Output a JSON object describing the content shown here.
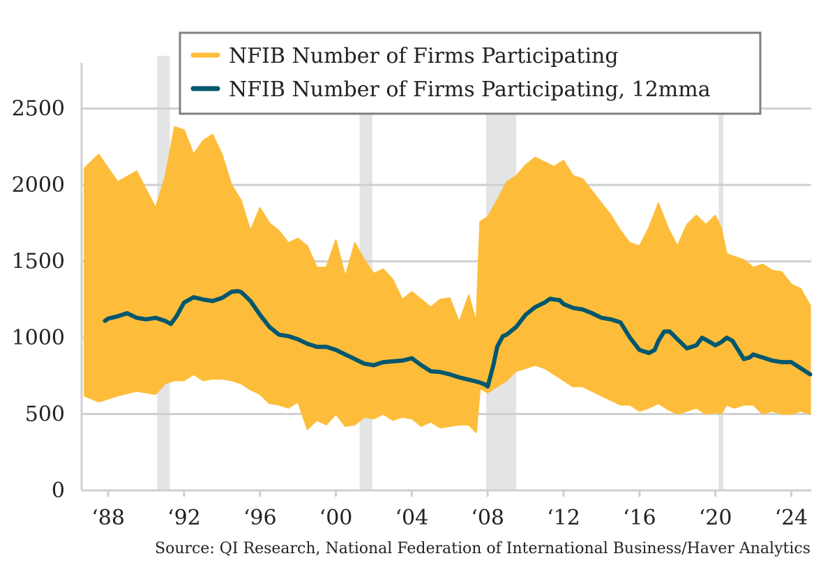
{
  "chart_data": {
    "type": "line",
    "ylim": [
      0,
      2800
    ],
    "xlim": [
      1986.6,
      2025.05
    ],
    "yticks": [
      0,
      500,
      1000,
      1500,
      2000,
      2500
    ],
    "ytick_labels": [
      "0",
      "500",
      "1000",
      "1500",
      "2000",
      "2500"
    ],
    "xticks": [
      1988,
      1992,
      1996,
      2000,
      2004,
      2008,
      2012,
      2016,
      2020,
      2024
    ],
    "xtick_labels": [
      "‘88",
      "‘92",
      "‘96",
      "‘00",
      "‘04",
      "‘08",
      "‘12",
      "‘16",
      "‘20",
      "‘24"
    ],
    "grid": true,
    "legend_position": "top-right",
    "recessions": [
      [
        1990.58,
        1991.25
      ],
      [
        2001.25,
        2001.92
      ],
      [
        2007.92,
        2009.5
      ],
      [
        2020.17,
        2020.42
      ]
    ],
    "series": [
      {
        "name": "NFIB Number of Firms Participating",
        "color": "#fdbd3b",
        "kind": "band",
        "x": [
          1986.75,
          1987.5,
          1988.5,
          1989.5,
          1990.5,
          1991.0,
          1991.5,
          1992.0,
          1992.5,
          1993.0,
          1993.5,
          1994.0,
          1994.5,
          1995.0,
          1995.5,
          1996.0,
          1996.5,
          1997.0,
          1997.5,
          1998.0,
          1998.5,
          1999.0,
          1999.5,
          2000.0,
          2000.5,
          2001.0,
          2001.5,
          2002.0,
          2002.5,
          2003.0,
          2003.5,
          2004.0,
          2004.5,
          2005.0,
          2005.5,
          2006.0,
          2006.5,
          2007.0,
          2007.4,
          2007.6,
          2008.0,
          2008.5,
          2009.0,
          2009.5,
          2010.0,
          2010.5,
          2011.0,
          2011.5,
          2012.0,
          2012.5,
          2013.0,
          2013.5,
          2014.0,
          2014.5,
          2015.0,
          2015.5,
          2016.0,
          2016.5,
          2017.0,
          2017.5,
          2018.0,
          2018.5,
          2019.0,
          2019.5,
          2020.0,
          2020.3,
          2020.6,
          2021.0,
          2021.5,
          2022.0,
          2022.5,
          2023.0,
          2023.5,
          2024.0,
          2024.5,
          2025.0
        ],
        "high": [
          2110,
          2200,
          2020,
          2090,
          1850,
          2050,
          2380,
          2360,
          2200,
          2290,
          2330,
          2200,
          2000,
          1900,
          1700,
          1850,
          1750,
          1700,
          1620,
          1650,
          1600,
          1460,
          1460,
          1640,
          1400,
          1620,
          1510,
          1420,
          1450,
          1380,
          1250,
          1300,
          1250,
          1200,
          1250,
          1260,
          1100,
          1280,
          1100,
          1760,
          1790,
          1900,
          2020,
          2060,
          2130,
          2180,
          2150,
          2120,
          2160,
          2060,
          2040,
          1960,
          1880,
          1800,
          1700,
          1620,
          1600,
          1720,
          1880,
          1720,
          1600,
          1740,
          1800,
          1740,
          1800,
          1720,
          1550,
          1530,
          1510,
          1460,
          1480,
          1440,
          1430,
          1350,
          1320,
          1210
        ],
        "low": [
          620,
          580,
          620,
          650,
          630,
          700,
          720,
          720,
          760,
          720,
          730,
          730,
          720,
          700,
          660,
          630,
          570,
          560,
          540,
          580,
          400,
          460,
          430,
          500,
          420,
          430,
          480,
          470,
          500,
          460,
          480,
          470,
          420,
          450,
          410,
          420,
          430,
          430,
          380,
          670,
          640,
          680,
          720,
          780,
          800,
          820,
          800,
          760,
          720,
          680,
          680,
          650,
          620,
          590,
          560,
          560,
          520,
          540,
          570,
          530,
          500,
          520,
          540,
          500,
          510,
          500,
          560,
          540,
          560,
          560,
          500,
          520,
          500,
          500,
          520,
          500
        ]
      },
      {
        "name": "NFIB Number of Firms Participating, 12mma",
        "color": "#00576e",
        "kind": "line",
        "x": [
          1987.83,
          1988.0,
          1988.5,
          1989.0,
          1989.5,
          1990.0,
          1990.5,
          1991.0,
          1991.3,
          1991.6,
          1992.0,
          1992.5,
          1993.0,
          1993.5,
          1994.0,
          1994.5,
          1994.8,
          1995.0,
          1995.5,
          1996.0,
          1996.5,
          1997.0,
          1997.5,
          1998.0,
          1998.5,
          1999.0,
          1999.5,
          2000.0,
          2000.5,
          2001.0,
          2001.5,
          2002.0,
          2002.5,
          2003.0,
          2003.5,
          2004.0,
          2004.5,
          2005.0,
          2005.5,
          2006.0,
          2006.5,
          2007.0,
          2007.5,
          2007.83,
          2008.0,
          2008.3,
          2008.5,
          2008.8,
          2009.0,
          2009.5,
          2010.0,
          2010.5,
          2011.0,
          2011.3,
          2011.5,
          2011.8,
          2012.0,
          2012.5,
          2013.0,
          2013.5,
          2014.0,
          2014.5,
          2015.0,
          2015.5,
          2016.0,
          2016.5,
          2016.8,
          2017.0,
          2017.3,
          2017.6,
          2018.0,
          2018.5,
          2019.0,
          2019.3,
          2019.6,
          2020.0,
          2020.3,
          2020.6,
          2020.9,
          2021.2,
          2021.5,
          2021.8,
          2022.0,
          2022.5,
          2023.0,
          2023.5,
          2024.0,
          2024.5,
          2025.0
        ],
        "y": [
          1110,
          1125,
          1140,
          1160,
          1130,
          1120,
          1130,
          1110,
          1090,
          1140,
          1230,
          1265,
          1250,
          1240,
          1260,
          1300,
          1305,
          1300,
          1240,
          1150,
          1070,
          1020,
          1010,
          990,
          960,
          940,
          940,
          920,
          890,
          860,
          830,
          820,
          840,
          845,
          850,
          865,
          820,
          780,
          775,
          760,
          740,
          725,
          710,
          695,
          680,
          820,
          940,
          1010,
          1020,
          1070,
          1150,
          1200,
          1230,
          1255,
          1250,
          1245,
          1220,
          1195,
          1185,
          1160,
          1130,
          1120,
          1100,
          1000,
          920,
          900,
          920,
          980,
          1040,
          1040,
          990,
          930,
          950,
          1000,
          980,
          950,
          970,
          1000,
          980,
          920,
          860,
          870,
          890,
          870,
          850,
          840,
          840,
          800,
          760
        ]
      }
    ]
  },
  "legend": {
    "items": [
      {
        "label": "NFIB Number of Firms Participating",
        "color": "#fdbd3b"
      },
      {
        "label": "NFIB Number of Firms Participating, 12mma",
        "color": "#00576e"
      }
    ]
  },
  "source": "Source: QI Research, National Federation of International Business/Haver Analytics"
}
